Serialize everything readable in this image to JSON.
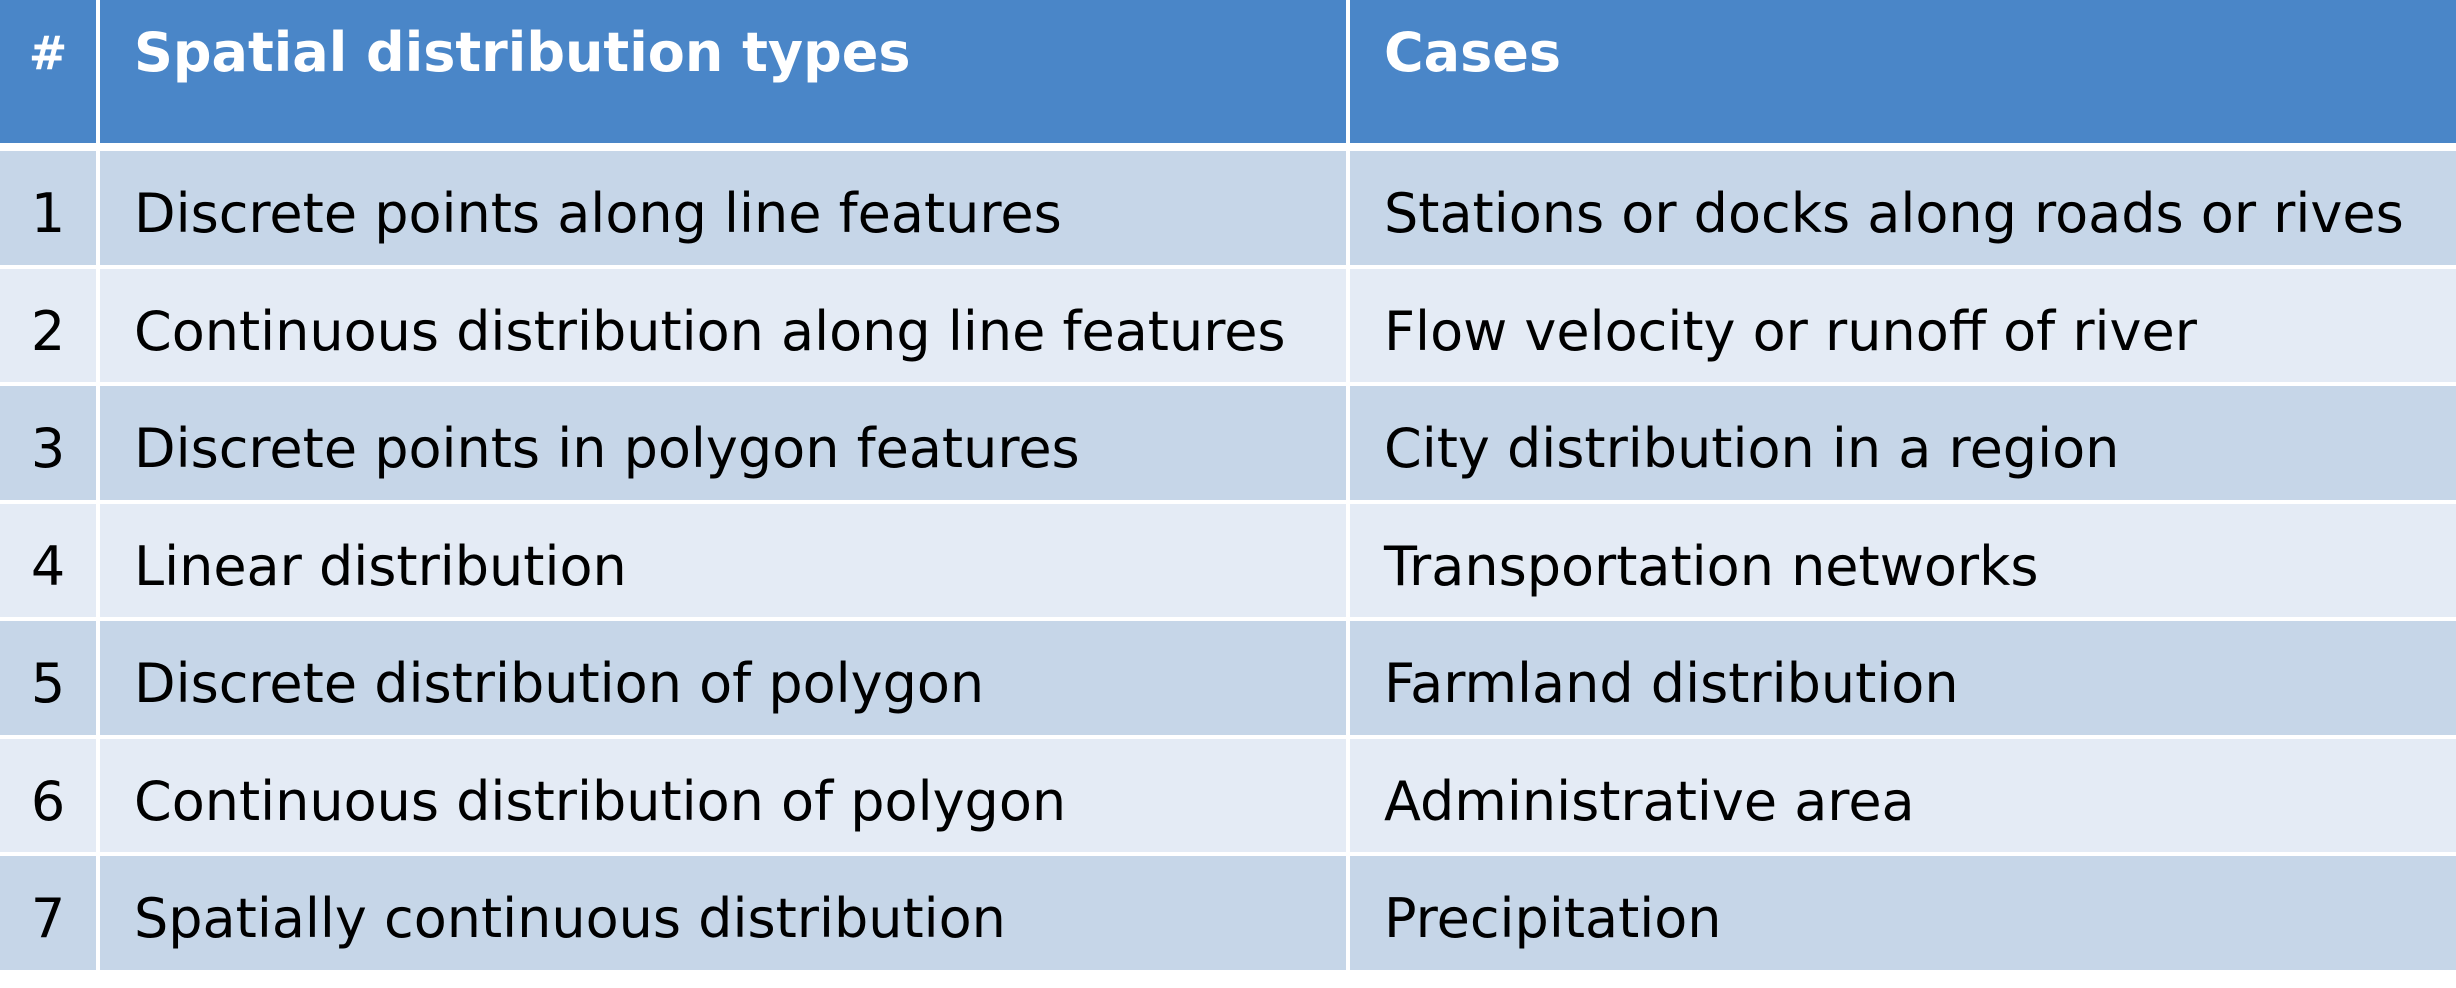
{
  "colors": {
    "header_bg": "#4a86c8",
    "row_dark": "#c6d6e8",
    "row_light": "#e4ebf5"
  },
  "table": {
    "headers": [
      "#",
      "Spatial distribution types",
      "Cases"
    ],
    "rows": [
      {
        "num": "1",
        "type": "Discrete points along line features",
        "case": "Stations or docks along roads or rives"
      },
      {
        "num": "2",
        "type": "Continuous distribution along line features",
        "case": "Flow velocity or runoff of river"
      },
      {
        "num": "3",
        "type": "Discrete points in polygon features",
        "case": "City distribution in a region"
      },
      {
        "num": "4",
        "type": "Linear distribution",
        "case": "Transportation networks"
      },
      {
        "num": "5",
        "type": "Discrete distribution of polygon",
        "case": "Farmland  distribution"
      },
      {
        "num": "6",
        "type": "Continuous distribution of polygon",
        "case": "Administrative area"
      },
      {
        "num": "7",
        "type": "Spatially continuous distribution",
        "case": "Precipitation"
      }
    ]
  }
}
